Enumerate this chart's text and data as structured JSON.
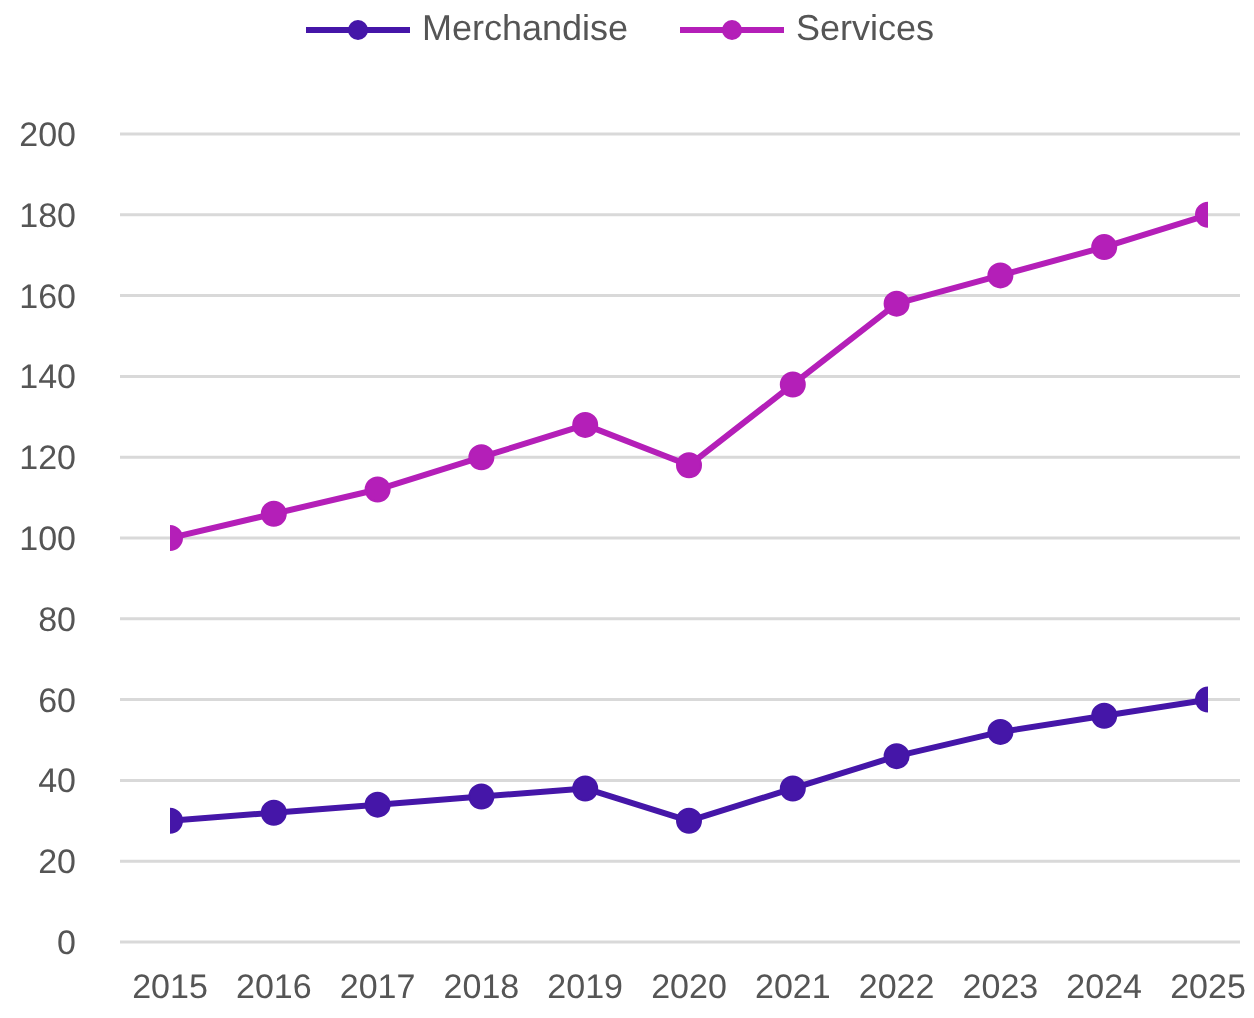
{
  "chart_data": {
    "type": "line",
    "categories": [
      "2015",
      "2016",
      "2017",
      "2018",
      "2019",
      "2020",
      "2021",
      "2022",
      "2023",
      "2024",
      "2025"
    ],
    "series": [
      {
        "name": "Merchandise",
        "color": "#4516a8",
        "values": [
          30,
          32,
          34,
          36,
          38,
          30,
          38,
          46,
          52,
          56,
          60
        ]
      },
      {
        "name": "Services",
        "color": "#b41fb8",
        "values": [
          100,
          106,
          112,
          120,
          128,
          118,
          138,
          158,
          165,
          172,
          180
        ]
      }
    ],
    "ylim": [
      0,
      200
    ],
    "yticks": [
      0,
      20,
      40,
      60,
      80,
      100,
      120,
      140,
      160,
      180,
      200
    ],
    "grid": "y",
    "legend": "top",
    "marker": "circle",
    "line_style": "solid"
  }
}
